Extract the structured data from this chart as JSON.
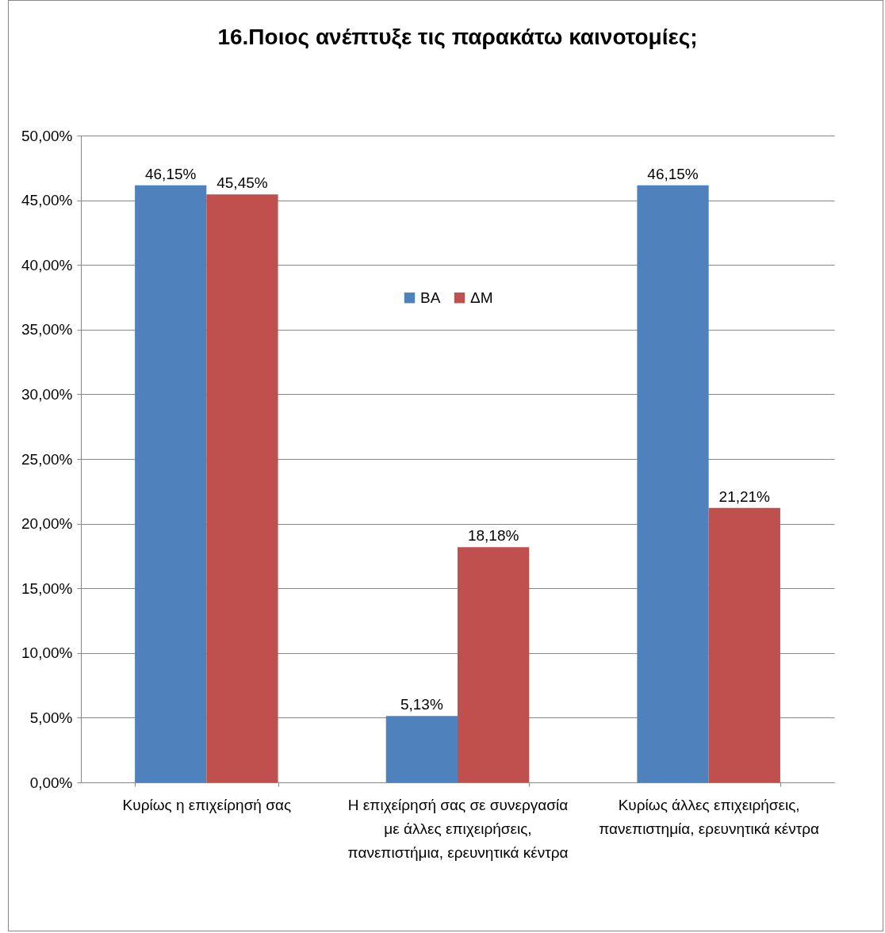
{
  "chart_data": {
    "type": "bar",
    "title": "16.Ποιος ανέπτυξε τις παρακάτω καινοτομίες;",
    "categories": [
      "Κυρίως η επιχείρησή σας",
      "Η επιχείρησή σας σε συνεργασία με άλλες επιχειρήσεις, πανεπιστήμια, ερευνητικά κέντρα",
      "Κυρίως άλλες επιχειρήσεις, πανεπιστημία, ερευνητικά κέντρα"
    ],
    "series": [
      {
        "name": "ΒΑ",
        "color": "#4f81bd",
        "values": [
          46.15,
          5.13,
          46.15
        ],
        "value_labels": [
          "46,15%",
          "5,13%",
          "46,15%"
        ]
      },
      {
        "name": "ΔΜ",
        "color": "#c0504d",
        "values": [
          45.45,
          18.18,
          21.21
        ],
        "value_labels": [
          "45,45%",
          "18,18%",
          "21,21%"
        ]
      }
    ],
    "ylim": [
      0,
      50
    ],
    "yticks": [
      {
        "value": 0,
        "label": "0,00%"
      },
      {
        "value": 5,
        "label": "5,00%"
      },
      {
        "value": 10,
        "label": "10,00%"
      },
      {
        "value": 15,
        "label": "15,00%"
      },
      {
        "value": 20,
        "label": "20,00%"
      },
      {
        "value": 25,
        "label": "25,00%"
      },
      {
        "value": 30,
        "label": "30,00%"
      },
      {
        "value": 35,
        "label": "35,00%"
      },
      {
        "value": 40,
        "label": "40,00%"
      },
      {
        "value": 45,
        "label": "45,00%"
      },
      {
        "value": 50,
        "label": "50,00%"
      }
    ],
    "grid": "y",
    "legend": "top"
  }
}
